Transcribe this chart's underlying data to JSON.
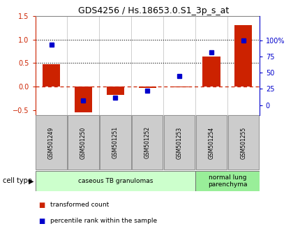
{
  "title": "GDS4256 / Hs.18653.0.S1_3p_s_at",
  "samples": [
    "GSM501249",
    "GSM501250",
    "GSM501251",
    "GSM501252",
    "GSM501253",
    "GSM501254",
    "GSM501255"
  ],
  "transformed_count": [
    0.47,
    -0.55,
    -0.18,
    -0.02,
    -0.01,
    0.64,
    1.3
  ],
  "percentile_rank": [
    0.93,
    0.07,
    0.12,
    0.22,
    0.45,
    0.82,
    1.0
  ],
  "ylim_left": [
    -0.6,
    1.5
  ],
  "ylim_right": [
    -15.0,
    137.5
  ],
  "yticks_left": [
    -0.5,
    0.0,
    0.5,
    1.0,
    1.5
  ],
  "yticks_right": [
    0,
    25,
    50,
    75,
    100
  ],
  "ytick_right_labels": [
    "0",
    "25",
    "50",
    "75",
    "100%"
  ],
  "hlines": [
    0.5,
    1.0
  ],
  "bar_color": "#cc2200",
  "marker_color": "#0000cc",
  "zero_line_color": "#cc2200",
  "cell_type_groups": [
    {
      "label": "caseous TB granulomas",
      "start": 0,
      "end": 5,
      "color": "#ccffcc"
    },
    {
      "label": "normal lung\nparenchyma",
      "start": 5,
      "end": 7,
      "color": "#99ee99"
    }
  ],
  "legend_items": [
    {
      "label": "transformed count",
      "color": "#cc2200"
    },
    {
      "label": "percentile rank within the sample",
      "color": "#0000cc"
    }
  ],
  "cell_type_label": "cell type",
  "background_color": "#ffffff",
  "bar_width": 0.55,
  "sample_box_color": "#cccccc",
  "sample_box_edge": "#888888"
}
